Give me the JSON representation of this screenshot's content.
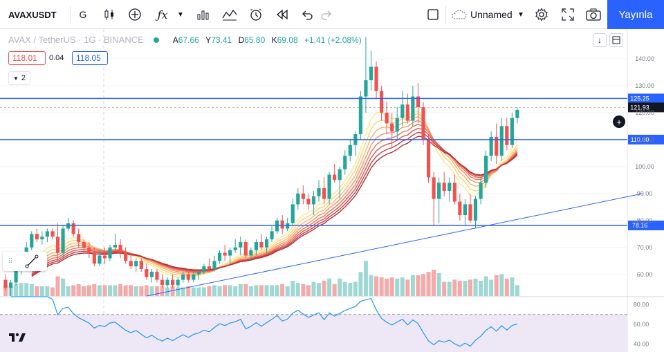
{
  "toolbar": {
    "symbol": "AVAXUSDT",
    "interval": "G",
    "unnamed": "Unnamed",
    "publish": "Yayınla"
  },
  "legend": {
    "title": "AVAX / TetherUS · 1G · BINANCE",
    "o_key": "A",
    "o_val": "67.66",
    "h_key": "Y",
    "h_val": "73.41",
    "l_key": "D",
    "l_val": "65.80",
    "c_key": "K",
    "c_val": "69.08",
    "change": "+1.41 (+2.08%)"
  },
  "bid": "118.01",
  "spread": "0.04",
  "ask": "118.05",
  "indicators_count": "2",
  "colors": {
    "up": "#26a69a",
    "down": "#ef5350",
    "hline": "#2962ff",
    "rsi": "#2196f3",
    "rsi_band": "#ede7f6"
  },
  "chart_data": {
    "type": "candlestick",
    "y_ticks": [
      "140.00",
      "130.00",
      "120.00",
      "110.00",
      "100.00",
      "90.00",
      "80.00",
      "70.00",
      "60.00"
    ],
    "ylim": [
      52,
      151
    ],
    "horizontal_lines": [
      {
        "price": 125.25,
        "label": "125.25"
      },
      {
        "price": 110.0,
        "label": "110.00"
      },
      {
        "price": 78.16,
        "label": "78.16"
      }
    ],
    "current_price": {
      "price": 121.93,
      "label": "121.93"
    },
    "trendline": {
      "from": [
        27,
        52
      ],
      "to": [
        122,
        90
      ]
    },
    "candles": [
      [
        58,
        60,
        54,
        55
      ],
      [
        55,
        58,
        52,
        57
      ],
      [
        57,
        63,
        56,
        62
      ],
      [
        62,
        68,
        60,
        66
      ],
      [
        66,
        72,
        64,
        70
      ],
      [
        70,
        76,
        69,
        75
      ],
      [
        75,
        77,
        72,
        73
      ],
      [
        73,
        76,
        71,
        74
      ],
      [
        74,
        77,
        72,
        76
      ],
      [
        76,
        77,
        73,
        74
      ],
      [
        74,
        79,
        65,
        68
      ],
      [
        68,
        78,
        66,
        77
      ],
      [
        77,
        81,
        76,
        79
      ],
      [
        79,
        80,
        74,
        75
      ],
      [
        75,
        77,
        70,
        72
      ],
      [
        72,
        73,
        68,
        70
      ],
      [
        70,
        72,
        66,
        68
      ],
      [
        68,
        70,
        63,
        64
      ],
      [
        64,
        69,
        63,
        67
      ],
      [
        67,
        70,
        64,
        66
      ],
      [
        66,
        71,
        65,
        70
      ],
      [
        70,
        75,
        69,
        71
      ],
      [
        71,
        73,
        66,
        68
      ],
      [
        68,
        70,
        64,
        65
      ],
      [
        65,
        68,
        62,
        63
      ],
      [
        63,
        66,
        61,
        65
      ],
      [
        65,
        66,
        61,
        62
      ],
      [
        62,
        64,
        58,
        59
      ],
      [
        59,
        62,
        57,
        61
      ],
      [
        61,
        62,
        57,
        58
      ],
      [
        58,
        60,
        55,
        56
      ],
      [
        56,
        59,
        55,
        58
      ],
      [
        58,
        60,
        55,
        56
      ],
      [
        56,
        59,
        55,
        58
      ],
      [
        58,
        61,
        57,
        60
      ],
      [
        60,
        62,
        57,
        58
      ],
      [
        58,
        61,
        57,
        60
      ],
      [
        60,
        62,
        58,
        61
      ],
      [
        61,
        64,
        60,
        63
      ],
      [
        63,
        66,
        61,
        62
      ],
      [
        62,
        67,
        61,
        65
      ],
      [
        65,
        69,
        64,
        68
      ],
      [
        68,
        71,
        65,
        67
      ],
      [
        67,
        70,
        64,
        69
      ],
      [
        69,
        73,
        68,
        70
      ],
      [
        70,
        74,
        67,
        72
      ],
      [
        72,
        73,
        66,
        67
      ],
      [
        67,
        70,
        65,
        69
      ],
      [
        69,
        73,
        67,
        72
      ],
      [
        72,
        75,
        69,
        70
      ],
      [
        70,
        74,
        68,
        73
      ],
      [
        73,
        78,
        72,
        76
      ],
      [
        76,
        81,
        75,
        80
      ],
      [
        80,
        82,
        75,
        77
      ],
      [
        77,
        81,
        76,
        79
      ],
      [
        79,
        88,
        78,
        86
      ],
      [
        86,
        92,
        84,
        90
      ],
      [
        90,
        93,
        86,
        88
      ],
      [
        88,
        90,
        84,
        86
      ],
      [
        86,
        91,
        82,
        89
      ],
      [
        89,
        95,
        87,
        92
      ],
      [
        92,
        96,
        86,
        88
      ],
      [
        88,
        98,
        86,
        97
      ],
      [
        97,
        101,
        94,
        95
      ],
      [
        95,
        100,
        88,
        99
      ],
      [
        99,
        106,
        97,
        104
      ],
      [
        104,
        110,
        102,
        108
      ],
      [
        108,
        113,
        104,
        112
      ],
      [
        112,
        128,
        110,
        126
      ],
      [
        126,
        148,
        120,
        132
      ],
      [
        132,
        143,
        128,
        137
      ],
      [
        137,
        139,
        125,
        128
      ],
      [
        128,
        130,
        117,
        120
      ],
      [
        120,
        124,
        112,
        116
      ],
      [
        116,
        120,
        107,
        113
      ],
      [
        113,
        122,
        110,
        118
      ],
      [
        118,
        128,
        115,
        123
      ],
      [
        123,
        127,
        116,
        117
      ],
      [
        117,
        130,
        115,
        126
      ],
      [
        126,
        131,
        116,
        122
      ],
      [
        122,
        124,
        108,
        110
      ],
      [
        110,
        112,
        94,
        96
      ],
      [
        96,
        98,
        78,
        88
      ],
      [
        88,
        96,
        79,
        94
      ],
      [
        94,
        98,
        89,
        91
      ],
      [
        91,
        96,
        87,
        94
      ],
      [
        94,
        97,
        86,
        87
      ],
      [
        87,
        90,
        80,
        82
      ],
      [
        82,
        88,
        78,
        86
      ],
      [
        86,
        90,
        79,
        80
      ],
      [
        80,
        89,
        77,
        88
      ],
      [
        88,
        96,
        86,
        94
      ],
      [
        94,
        106,
        92,
        104
      ],
      [
        104,
        113,
        102,
        111
      ],
      [
        111,
        116,
        101,
        104
      ],
      [
        104,
        118,
        102,
        115
      ],
      [
        115,
        118,
        106,
        108
      ],
      [
        108,
        120,
        107,
        118
      ],
      [
        118,
        122,
        116,
        121
      ]
    ],
    "rsi": {
      "ticks": [
        "80.00",
        "60.00",
        "40.00"
      ],
      "ylim": [
        32,
        88
      ],
      "band": [
        30,
        70
      ]
    }
  }
}
